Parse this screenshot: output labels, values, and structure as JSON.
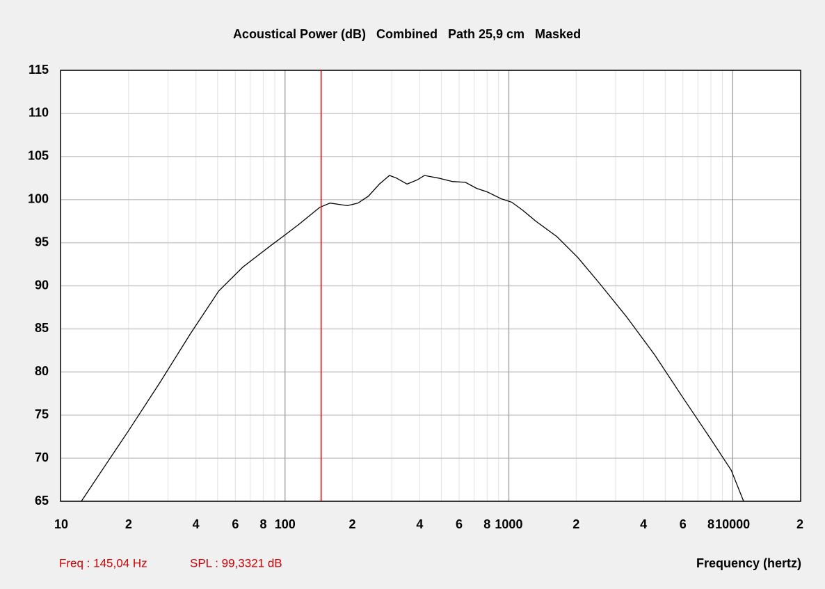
{
  "chart_data": {
    "type": "line",
    "title": "Acoustical Power (dB)   Combined   Path 25,9 cm   Masked",
    "xlabel": "Frequency (hertz)",
    "xlog": true,
    "xlim": [
      10,
      20000
    ],
    "ylim": [
      65,
      115
    ],
    "xticks": [
      {
        "value": 10,
        "label": "10"
      },
      {
        "value": 20,
        "label": "2"
      },
      {
        "value": 40,
        "label": "4"
      },
      {
        "value": 60,
        "label": "6"
      },
      {
        "value": 80,
        "label": "8"
      },
      {
        "value": 100,
        "label": "100"
      },
      {
        "value": 200,
        "label": "2"
      },
      {
        "value": 400,
        "label": "4"
      },
      {
        "value": 600,
        "label": "6"
      },
      {
        "value": 800,
        "label": "8"
      },
      {
        "value": 1000,
        "label": "1000"
      },
      {
        "value": 2000,
        "label": "2"
      },
      {
        "value": 4000,
        "label": "4"
      },
      {
        "value": 6000,
        "label": "6"
      },
      {
        "value": 8000,
        "label": "8"
      },
      {
        "value": 10000,
        "label": "10000"
      },
      {
        "value": 20000,
        "label": "2"
      }
    ],
    "minor_xticks": [
      20,
      30,
      40,
      50,
      60,
      70,
      80,
      90,
      200,
      300,
      400,
      500,
      600,
      700,
      800,
      900,
      2000,
      3000,
      4000,
      5000,
      6000,
      7000,
      8000,
      9000
    ],
    "major_xgrid": [
      100,
      1000,
      10000
    ],
    "yticks": [
      65,
      70,
      75,
      80,
      85,
      90,
      95,
      100,
      105,
      110,
      115
    ],
    "grid": true,
    "color": "#000000",
    "x": [
      12.3,
      15.5,
      19.9,
      27.5,
      37.9,
      50.6,
      65,
      86.7,
      100,
      115,
      143,
      159,
      190,
      212,
      236,
      264,
      293,
      315,
      351,
      391,
      420,
      485,
      560,
      640,
      719,
      800,
      925,
      1030,
      1150,
      1320,
      1640,
      2030,
      2520,
      3360,
      4480,
      5970,
      7950,
      9860,
      11200
    ],
    "values": [
      65.0,
      68.9,
      73.1,
      78.7,
      84.5,
      89.4,
      92.2,
      94.7,
      95.9,
      97.1,
      99.1,
      99.6,
      99.3,
      99.6,
      100.4,
      101.8,
      102.8,
      102.5,
      101.8,
      102.3,
      102.8,
      102.5,
      102.1,
      102.0,
      101.3,
      100.9,
      100.1,
      99.7,
      98.8,
      97.5,
      95.7,
      93.3,
      90.4,
      86.4,
      82.0,
      77.1,
      72.3,
      68.6,
      65.0
    ],
    "cursor": {
      "x": 145.04,
      "color": "#e00000"
    },
    "readout_freq": "Freq : 145,04 Hz",
    "readout_spl": "SPL : 99,3321 dB"
  }
}
